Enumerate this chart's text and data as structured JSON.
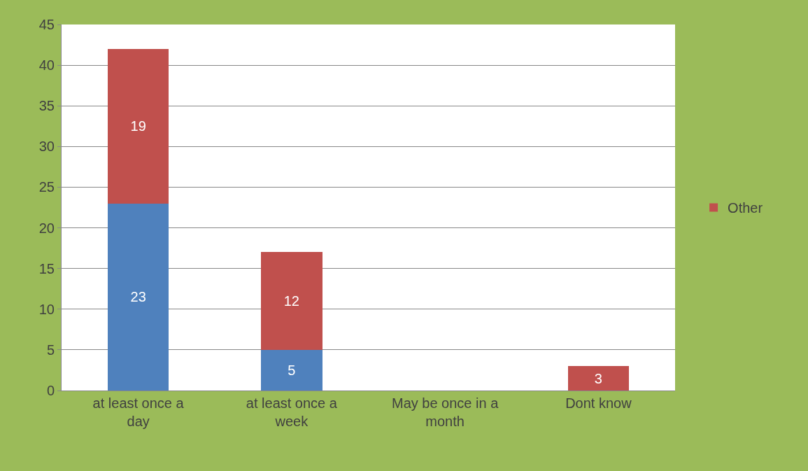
{
  "chart_data": {
    "type": "bar",
    "stacked": true,
    "categories": [
      "at least once a day",
      "at least once a week",
      "May be once in a month",
      "Dont know"
    ],
    "series": [
      {
        "color": "#4f81bd",
        "values": [
          23,
          5,
          0,
          0
        ],
        "value_labels": [
          "23",
          "5",
          null,
          null
        ]
      },
      {
        "name": "Other",
        "color": "#c0504d",
        "values": [
          19,
          12,
          0,
          3
        ],
        "value_labels": [
          "19",
          "12",
          null,
          "3"
        ]
      }
    ],
    "ylim": [
      0,
      45
    ],
    "yticks": [
      0,
      5,
      10,
      15,
      20,
      25,
      30,
      35,
      40,
      45
    ],
    "grid": "y",
    "legend": "right"
  }
}
